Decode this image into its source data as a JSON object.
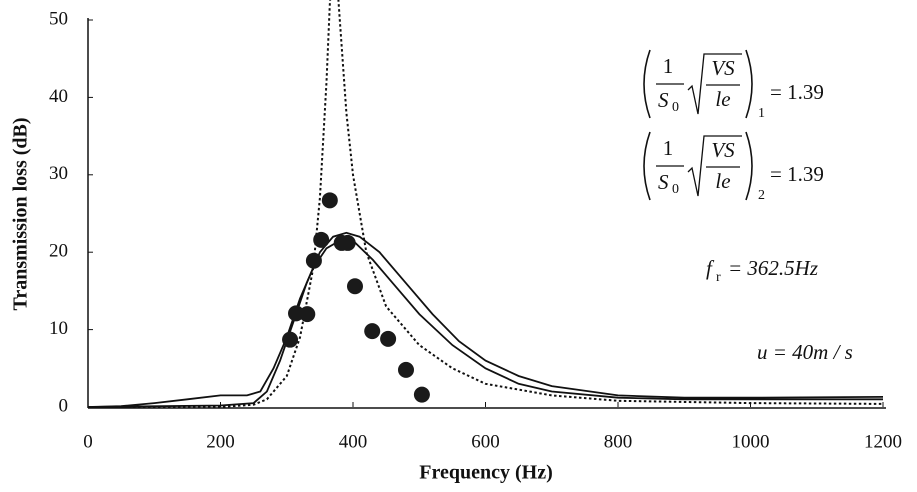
{
  "chart_data": {
    "type": "line",
    "x_label": "Frequency (Hz)",
    "y_label": "Transmission loss (dB)",
    "xlim": [
      0,
      1200
    ],
    "ylim": [
      0,
      50
    ],
    "xticks": [
      0,
      200,
      400,
      600,
      800,
      1000,
      1200
    ],
    "yticks": [
      0,
      10,
      20,
      30,
      40,
      50
    ],
    "series": [
      {
        "style": "dotted",
        "color": "#111",
        "x": [
          0,
          100,
          200,
          250,
          270,
          300,
          320,
          340,
          350,
          360,
          365,
          372,
          380,
          390,
          400,
          420,
          450,
          500,
          550,
          600,
          700,
          800,
          1000,
          1200
        ],
        "values": [
          0,
          0,
          0,
          0.3,
          1,
          4,
          9,
          18,
          27,
          42,
          52,
          60,
          50,
          38,
          30,
          20,
          13,
          8,
          5,
          3,
          1.5,
          0.8,
          0.5,
          0.4
        ]
      },
      {
        "style": "solid",
        "color": "#111",
        "x": [
          0,
          50,
          100,
          150,
          200,
          240,
          260,
          280,
          300,
          320,
          340,
          360,
          380,
          400,
          430,
          460,
          500,
          550,
          600,
          650,
          700,
          800,
          900,
          1000,
          1100,
          1200
        ],
        "values": [
          0,
          0.1,
          0.5,
          1,
          1.5,
          1.5,
          2,
          5,
          9,
          14,
          18,
          20.5,
          21.5,
          21.5,
          19,
          16,
          12,
          8,
          5,
          3,
          2,
          1.2,
          1,
          1,
          1,
          1
        ]
      },
      {
        "style": "solid",
        "color": "#111",
        "x": [
          0,
          200,
          250,
          270,
          290,
          310,
          330,
          350,
          370,
          390,
          410,
          440,
          480,
          520,
          560,
          600,
          650,
          700,
          800,
          900,
          1000,
          1200
        ],
        "values": [
          0,
          0.2,
          0.5,
          2,
          6,
          11,
          16,
          20,
          22,
          22.5,
          22,
          20,
          16,
          12,
          8.5,
          6,
          4,
          2.7,
          1.5,
          1.2,
          1.2,
          1.3
        ]
      },
      {
        "style": "markers",
        "color": "#1a1a1a",
        "x": [
          305,
          314,
          331,
          341,
          352,
          365,
          383,
          392,
          403,
          429,
          453,
          480,
          504
        ],
        "values": [
          8.7,
          12.1,
          12.0,
          18.9,
          21.6,
          26.7,
          21.2,
          21.2,
          15.6,
          9.8,
          8.8,
          4.8,
          1.6
        ]
      }
    ],
    "formulas": [
      {
        "numerator": "1",
        "denominator": "S",
        "denominator_subscript": "0",
        "radicand_numerator": "VS",
        "radicand_denominator": "le",
        "subscript": "1",
        "value_text": "= 1.39"
      },
      {
        "numerator": "1",
        "denominator": "S",
        "denominator_subscript": "0",
        "radicand_numerator": "VS",
        "radicand_denominator": "le",
        "subscript": "2",
        "value_text": "= 1.39"
      }
    ],
    "notes": [
      {
        "base": "f",
        "subscript": "r",
        "text": "= 362.5Hz"
      },
      {
        "text": "u = 40m / s"
      }
    ]
  }
}
